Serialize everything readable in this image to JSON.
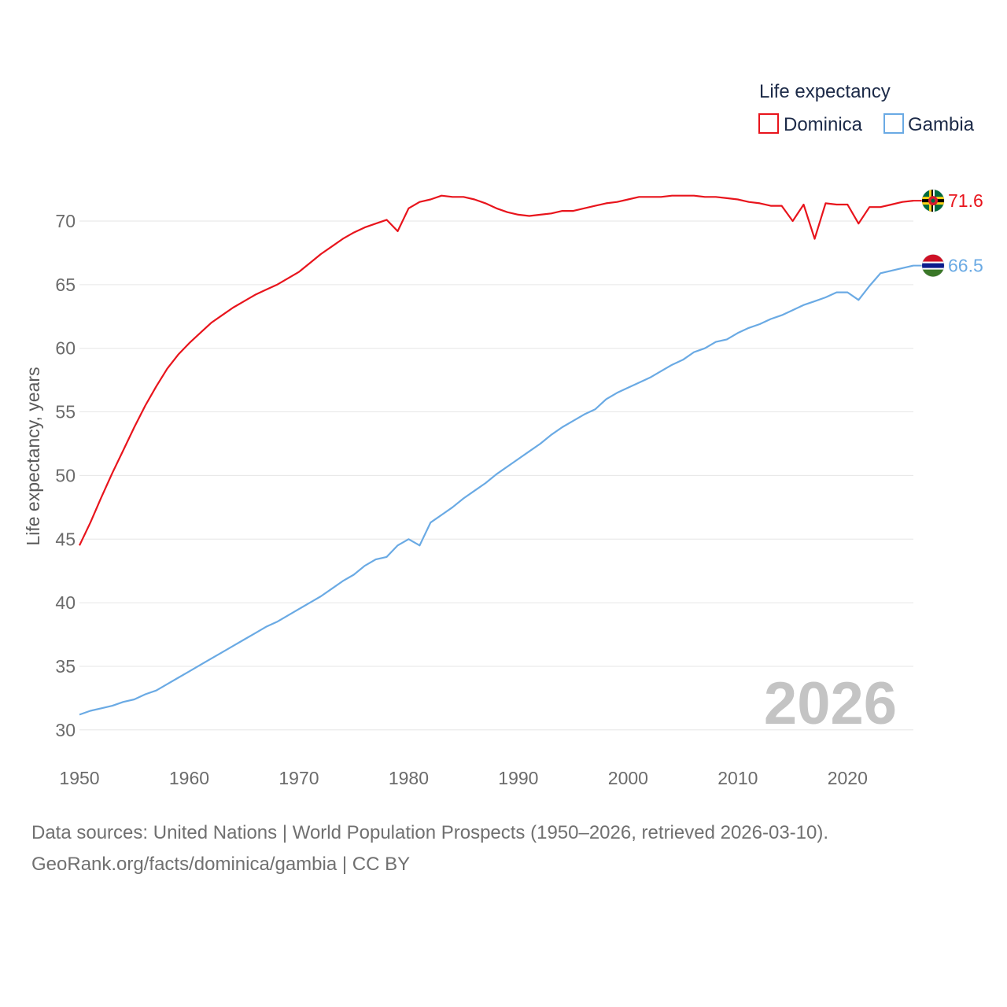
{
  "chart_data": {
    "type": "line",
    "legend_title": "Life expectancy",
    "ylabel": "Life expectancy, years",
    "xlabel": "",
    "xlim": [
      1950,
      2026
    ],
    "ylim": [
      30,
      73
    ],
    "x_ticks": [
      1950,
      1960,
      1970,
      1980,
      1990,
      2000,
      2010,
      2020
    ],
    "y_ticks": [
      30,
      35,
      40,
      45,
      50,
      55,
      60,
      65,
      70
    ],
    "year_watermark": "2026",
    "legend_position": "top-right",
    "grid": true,
    "series": [
      {
        "name": "Dominica",
        "color": "#e8141c",
        "flag": "dominica-flag-icon",
        "end_label": "71.6",
        "x": [
          1950,
          1951,
          1952,
          1953,
          1954,
          1955,
          1956,
          1957,
          1958,
          1959,
          1960,
          1961,
          1962,
          1963,
          1964,
          1965,
          1966,
          1967,
          1968,
          1969,
          1970,
          1971,
          1972,
          1973,
          1974,
          1975,
          1976,
          1977,
          1978,
          1979,
          1980,
          1981,
          1982,
          1983,
          1984,
          1985,
          1986,
          1987,
          1988,
          1989,
          1990,
          1991,
          1992,
          1993,
          1994,
          1995,
          1996,
          1997,
          1998,
          1999,
          2000,
          2001,
          2002,
          2003,
          2004,
          2005,
          2006,
          2007,
          2008,
          2009,
          2010,
          2011,
          2012,
          2013,
          2014,
          2015,
          2016,
          2017,
          2018,
          2019,
          2020,
          2021,
          2022,
          2023,
          2024,
          2025,
          2026
        ],
        "values": [
          44.5,
          46.3,
          48.3,
          50.2,
          52.0,
          53.8,
          55.5,
          57.0,
          58.4,
          59.5,
          60.4,
          61.2,
          62.0,
          62.6,
          63.2,
          63.7,
          64.2,
          64.6,
          65.0,
          65.5,
          66.0,
          66.7,
          67.4,
          68.0,
          68.6,
          69.1,
          69.5,
          69.8,
          70.1,
          69.2,
          71.0,
          71.5,
          71.7,
          72.0,
          71.9,
          71.9,
          71.7,
          71.4,
          71.0,
          70.7,
          70.5,
          70.4,
          70.5,
          70.6,
          70.8,
          70.8,
          71.0,
          71.2,
          71.4,
          71.5,
          71.7,
          71.9,
          71.9,
          71.9,
          72.0,
          72.0,
          72.0,
          71.9,
          71.9,
          71.8,
          71.7,
          71.5,
          71.4,
          71.2,
          71.2,
          70.0,
          71.3,
          68.6,
          71.4,
          71.3,
          71.3,
          69.8,
          71.1,
          71.1,
          71.3,
          71.5,
          71.6
        ]
      },
      {
        "name": "Gambia",
        "color": "#6aaae4",
        "flag": "gambia-flag-icon",
        "end_label": "66.5",
        "x": [
          1950,
          1951,
          1952,
          1953,
          1954,
          1955,
          1956,
          1957,
          1958,
          1959,
          1960,
          1961,
          1962,
          1963,
          1964,
          1965,
          1966,
          1967,
          1968,
          1969,
          1970,
          1971,
          1972,
          1973,
          1974,
          1975,
          1976,
          1977,
          1978,
          1979,
          1980,
          1981,
          1982,
          1983,
          1984,
          1985,
          1986,
          1987,
          1988,
          1989,
          1990,
          1991,
          1992,
          1993,
          1994,
          1995,
          1996,
          1997,
          1998,
          1999,
          2000,
          2001,
          2002,
          2003,
          2004,
          2005,
          2006,
          2007,
          2008,
          2009,
          2010,
          2011,
          2012,
          2013,
          2014,
          2015,
          2016,
          2017,
          2018,
          2019,
          2020,
          2021,
          2022,
          2023,
          2024,
          2025,
          2026
        ],
        "values": [
          31.2,
          31.5,
          31.7,
          31.9,
          32.2,
          32.4,
          32.8,
          33.1,
          33.6,
          34.1,
          34.6,
          35.1,
          35.6,
          36.1,
          36.6,
          37.1,
          37.6,
          38.1,
          38.5,
          39.0,
          39.5,
          40.0,
          40.5,
          41.1,
          41.7,
          42.2,
          42.9,
          43.4,
          43.6,
          44.5,
          45.0,
          44.5,
          46.3,
          46.9,
          47.5,
          48.2,
          48.8,
          49.4,
          50.1,
          50.7,
          51.3,
          51.9,
          52.5,
          53.2,
          53.8,
          54.3,
          54.8,
          55.2,
          56.0,
          56.5,
          56.9,
          57.3,
          57.7,
          58.2,
          58.7,
          59.1,
          59.7,
          60.0,
          60.5,
          60.7,
          61.2,
          61.6,
          61.9,
          62.3,
          62.6,
          63.0,
          63.4,
          63.7,
          64.0,
          64.4,
          64.4,
          63.8,
          64.9,
          65.9,
          66.1,
          66.3,
          66.5
        ]
      }
    ]
  },
  "source": {
    "line1": "Data sources: United Nations | World Population Prospects (1950–2026, retrieved 2026-03-10).",
    "line2": "GeoRank.org/facts/dominica/gambia | CC BY"
  }
}
